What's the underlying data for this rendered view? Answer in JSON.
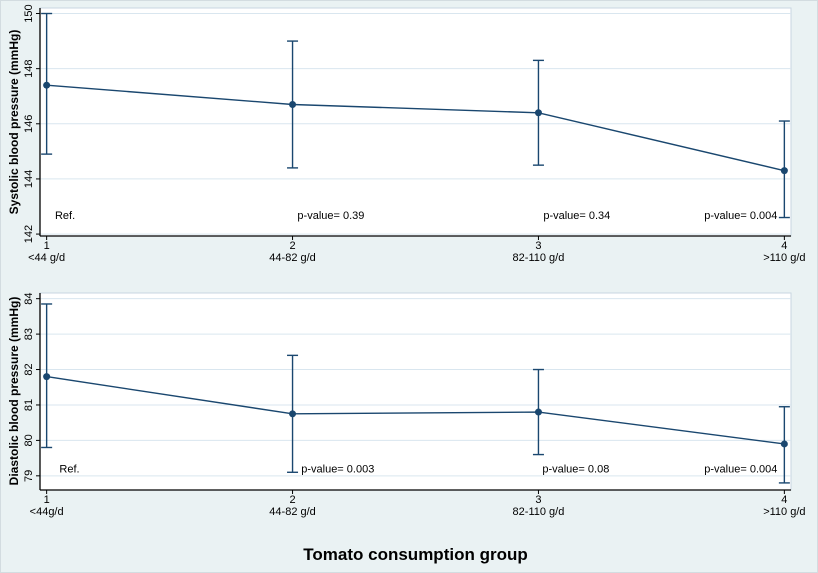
{
  "figure": {
    "x_axis_title": "Tomato consumption group",
    "background_color": "#EAF2F3",
    "plot_background_color": "#FFFFFF",
    "series_color": "#1A476F",
    "grid_color": "#D9E6EF",
    "frame_color": "#C8D6E0",
    "axis_color": "#000000",
    "text_color": "#000000"
  },
  "chart_data": [
    {
      "panel": "systolic",
      "type": "line",
      "title": "",
      "ylabel": "Systolic blood pressure (mmHg)",
      "xlabel": "Tomato consumption group",
      "x": [
        1,
        2,
        3,
        4
      ],
      "x_tick_labels": [
        "1",
        "2",
        "3",
        "4"
      ],
      "x_tick_sublabels": [
        "<44 g/d",
        "44-82 g/d",
        "82-110 g/d",
        ">110 g/d"
      ],
      "series": [
        {
          "name": "Systolic blood pressure (mmHg)",
          "values": [
            147.4,
            146.7,
            146.4,
            144.3
          ],
          "ci_low": [
            144.9,
            144.4,
            144.5,
            142.6
          ],
          "ci_high": [
            150.0,
            149.0,
            148.3,
            146.1
          ]
        }
      ],
      "yticks": [
        142,
        144,
        146,
        148,
        150
      ],
      "ylim": [
        141.93,
        150.2
      ],
      "xlim": [
        0.973,
        4.027
      ],
      "grid": true,
      "legend": false,
      "error_bars": true,
      "annotations": [
        {
          "text": "Ref.",
          "x": 1.075,
          "y": 142.7
        },
        {
          "text": "p-value= 0.39",
          "x": 2.156,
          "y": 142.7
        },
        {
          "text": "p-value= 0.34",
          "x": 3.156,
          "y": 142.7
        },
        {
          "text": "p-value= 0.004",
          "x": 3.823,
          "y": 142.7
        }
      ]
    },
    {
      "panel": "diastolic",
      "type": "line",
      "title": "",
      "ylabel": "Diastolic blood pressure (mmHg)",
      "xlabel": "Tomato consumption group",
      "x": [
        1,
        2,
        3,
        4
      ],
      "x_tick_labels": [
        "1",
        "2",
        "3",
        "4"
      ],
      "x_tick_sublabels": [
        "<44g/d",
        "44-82 g/d",
        "82-110 g/d",
        ">110 g/d"
      ],
      "series": [
        {
          "name": "Diastolic blood pressure (mmHg)",
          "values": [
            81.8,
            80.75,
            80.8,
            79.9
          ],
          "ci_low": [
            79.8,
            79.1,
            79.6,
            78.8
          ],
          "ci_high": [
            83.85,
            82.4,
            82.0,
            80.95
          ]
        }
      ],
      "yticks": [
        79,
        80,
        81,
        82,
        83,
        84
      ],
      "ylim": [
        78.6,
        84.16
      ],
      "xlim": [
        0.973,
        4.027
      ],
      "grid": true,
      "legend": false,
      "error_bars": true,
      "annotations": [
        {
          "text": "Ref.",
          "x": 1.093,
          "y": 79.2
        },
        {
          "text": "p-value= 0.003",
          "x": 2.184,
          "y": 79.2
        },
        {
          "text": "p-value= 0.08",
          "x": 3.152,
          "y": 79.2
        },
        {
          "text": "p-value= 0.004",
          "x": 3.823,
          "y": 79.2
        }
      ]
    }
  ]
}
